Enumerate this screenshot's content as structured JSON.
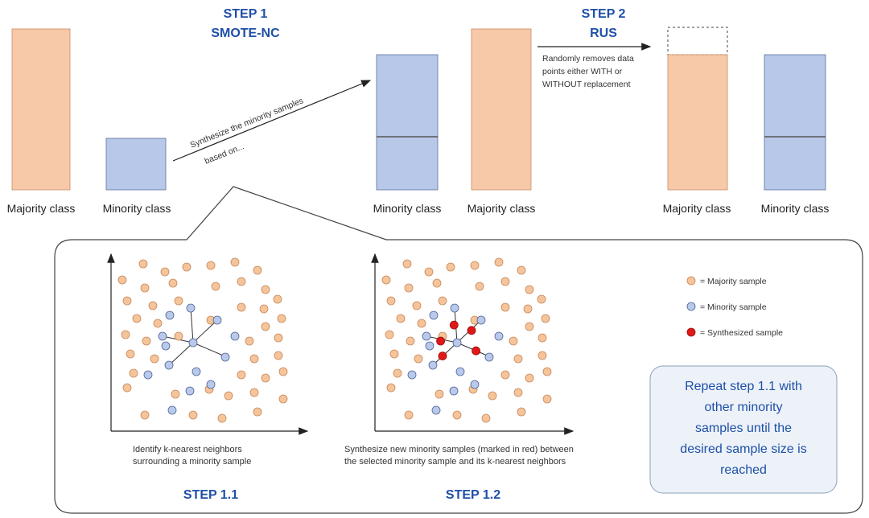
{
  "steps": {
    "step1_line1": "STEP 1",
    "step1_line2": "SMOTE-NC",
    "step2_line1": "STEP 2",
    "step2_line2": "RUS",
    "step11": "STEP 1.1",
    "step12": "STEP 1.2"
  },
  "labels": {
    "majority": "Majority class",
    "minority": "Minority class"
  },
  "notes": {
    "synth_line1": "Synthesize the minority samples",
    "synth_line2": "based on...",
    "rus_line1": "Randomly removes data",
    "rus_line2": "points either WITH or",
    "rus_line3": "WITHOUT replacement"
  },
  "captions": {
    "c11_line1": "Identify k-nearest neighbors",
    "c11_line2": "surrounding a minority sample",
    "c12_line1": "Synthesize new minority samples (marked in red) between",
    "c12_line2": "the selected minority sample and its k-nearest neighbors"
  },
  "legend": {
    "majority": "= Majority sample",
    "minority": "= Minority sample",
    "synth": "= Synthesized sample"
  },
  "repeat": {
    "line1": "Repeat step 1.1 with",
    "line2": "other minority",
    "line3": "samples until the",
    "line4": "desired sample size is",
    "line5": "reached"
  },
  "colors": {
    "majority_fill": "#f8c9a8",
    "minority_fill": "#b8c8e8",
    "majority_dot": "#f5c49a",
    "minority_dot": "#b9c9ea",
    "synth_dot": "#e01818",
    "title_blue": "#1f4fa8"
  }
}
